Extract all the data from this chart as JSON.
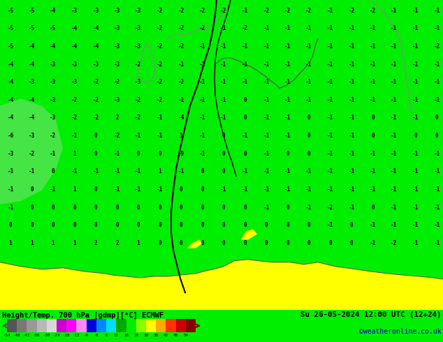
{
  "title_left": "Height/Temp. 700 hPa [gdmp][°C] ECMWF",
  "title_right": "Su 26-05-2024 12:00 UTC (12+24)",
  "credit": "©weatheronline.co.uk",
  "colorbar_values": [
    -54,
    -48,
    -42,
    -36,
    -30,
    -24,
    -18,
    -12,
    -6,
    0,
    6,
    12,
    18,
    24,
    30,
    36,
    42,
    48,
    54
  ],
  "colorbar_colors": [
    "#555555",
    "#787878",
    "#989898",
    "#b8b8b8",
    "#d8d8d8",
    "#cc00cc",
    "#ff00ff",
    "#ff88ff",
    "#0000dd",
    "#0088ff",
    "#00ddff",
    "#00aa00",
    "#00ee00",
    "#88ff00",
    "#ffff00",
    "#ffaa00",
    "#ff3300",
    "#cc0000",
    "#880000"
  ],
  "bg_color": "#00ee00",
  "bottom_strip_color": "#ffff00",
  "text_color_left": "#000000",
  "text_color_right": "#000000",
  "credit_color": "#0000cc",
  "map_left_green": "#00dd00",
  "map_right_green": "#00dd00",
  "label_numbers": [
    [
      -5,
      -5,
      -4,
      -3,
      -3,
      -3,
      -3,
      -2,
      -2,
      -2,
      -2,
      -1,
      -2,
      -2,
      -2,
      -1,
      -2,
      -2,
      -1,
      -1,
      -1
    ],
    [
      -5,
      -5,
      -5,
      -4,
      -4,
      -3,
      -3,
      -2,
      -2,
      -2,
      -1,
      -2,
      -1,
      -1,
      -1,
      -1,
      -1,
      -1,
      -1,
      -1,
      -1
    ],
    [
      -5,
      -4,
      -4,
      -4,
      -4,
      -3,
      -3,
      -2,
      -2,
      -1,
      -1,
      -1,
      -1,
      -1,
      -1,
      -1,
      -1,
      -1,
      -1,
      -1,
      -2
    ],
    [
      -4,
      -4,
      -3,
      -3,
      -3,
      -3,
      -2,
      -2,
      -1,
      -1,
      -1,
      -1,
      -1,
      -1,
      -1,
      -1,
      -1,
      -1,
      -1,
      -1,
      -1
    ],
    [
      -4,
      -3,
      -3,
      -3,
      -2,
      -2,
      -3,
      -2,
      -2,
      -1,
      -1,
      -1,
      -1,
      -1,
      -1,
      -1,
      -1,
      -1,
      -1,
      -1,
      -1
    ],
    [
      -4,
      -4,
      -3,
      -2,
      -2,
      -3,
      -2,
      -2,
      -1,
      -1,
      -1,
      0,
      -1,
      -1,
      -1,
      -1,
      -1,
      -1,
      -1,
      -1,
      -1
    ],
    [
      -4,
      -4,
      -3,
      -2,
      -2,
      2,
      -2,
      -1,
      -4,
      -1,
      -1,
      0,
      -1,
      -1,
      0,
      -1,
      -1,
      0,
      -1,
      -1,
      0
    ],
    [
      -6,
      -3,
      -2,
      -1,
      0,
      -2,
      -1,
      -1,
      1,
      -1,
      0,
      -1,
      -1,
      -1,
      0,
      -1,
      -1,
      0,
      -1,
      0,
      0
    ],
    [
      -3,
      -2,
      -1,
      1,
      0,
      -1,
      0,
      0,
      -9,
      -1,
      0,
      0,
      -1,
      0,
      0,
      -1,
      -1,
      -1,
      -1,
      -1,
      -1
    ],
    [
      -1,
      -1,
      0,
      -1,
      -1,
      -1,
      -1,
      1,
      -1,
      0,
      0,
      -1,
      -1,
      -1,
      -1,
      -1,
      -1,
      -1,
      -1,
      -1,
      -1
    ],
    [
      -1,
      0,
      -1,
      1,
      0,
      -1,
      -1,
      -1,
      0,
      0,
      -1,
      -1,
      -1,
      -1,
      -1,
      -1,
      -1,
      -1,
      -1,
      -1,
      -1
    ],
    [
      -1,
      0,
      0,
      0,
      0,
      0,
      0,
      0,
      0,
      0,
      0,
      0,
      -1,
      0,
      -1,
      -2,
      -1,
      0,
      -1,
      -1,
      -1
    ],
    [
      0,
      0,
      0,
      0,
      0,
      0,
      0,
      0,
      0,
      0,
      0,
      0,
      0,
      0,
      0,
      -1,
      0,
      -1,
      -1,
      -1,
      -1
    ],
    [
      1,
      1,
      1,
      1,
      2,
      2,
      1,
      0,
      0,
      0,
      0,
      0,
      0,
      0,
      0,
      0,
      0,
      -1,
      -2,
      -1,
      -1
    ]
  ],
  "yellow_region_x": [
    0,
    120,
    160,
    200,
    240,
    280,
    300,
    310,
    330,
    350,
    380,
    400,
    420,
    450,
    490,
    510,
    550,
    580,
    610,
    634,
    634,
    0
  ],
  "yellow_region_y_bottom": [
    0,
    0,
    0,
    0,
    0,
    0,
    0,
    0,
    0,
    0,
    0,
    0,
    0,
    0,
    0,
    0,
    0,
    0,
    0,
    0,
    440,
    440
  ],
  "yellow_top_y": [
    68,
    55,
    52,
    50,
    48,
    52,
    55,
    62,
    68,
    72,
    70,
    65,
    70,
    62,
    60,
    58,
    55,
    52,
    48,
    45
  ]
}
